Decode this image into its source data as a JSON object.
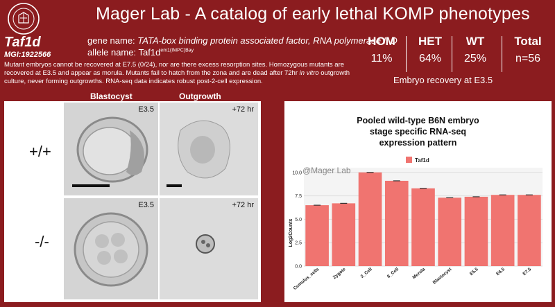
{
  "header": {
    "title": "Mager Lab - A catalog of early lethal KOMP phenotypes"
  },
  "gene": {
    "symbol": "Taf1d",
    "mgi": "MGI:1922566",
    "gene_name_label": "gene name:",
    "gene_name_value": "TATA-box binding protein associated factor, RNA polymerase I, D",
    "allele_name_label": "allele name:",
    "allele_base": "Taf1d",
    "allele_sup": "em1(IMPC)Bay"
  },
  "description": {
    "part1": "Mutant embryos cannot be recovered at E7.5 (0/24), nor are there excess resorption sites. Homozygous mutants are recovered at E3.5 and appear as morula. Mutants fail to hatch from the zona and are dead after 72hr ",
    "italic": "in vitro",
    "part2": " outgrowth culture, never forming outgrowths. RNA-seq data indicates robust post-2-cell expression."
  },
  "stats": {
    "hom_label": "HOM",
    "hom_value": "11%",
    "het_label": "HET",
    "het_value": "64%",
    "wt_label": "WT",
    "wt_value": "25%",
    "total_label": "Total",
    "total_value": "n=56",
    "recovery": "Embryo recovery at E3.5"
  },
  "images": {
    "col_blastocyst": "Blastocyst",
    "col_outgrowth": "Outgrowth",
    "row_wt": "+/+",
    "row_mut": "-/-",
    "tag_e35": "E3.5",
    "tag_72": "+72 hr"
  },
  "chart_data": {
    "type": "bar",
    "title_lines": [
      "Pooled wild-type B6N embryo",
      "stage specific RNA-seq",
      "expression pattern"
    ],
    "watermark": "@Mager Lab",
    "legend": "Taf1d",
    "ylabel": "Log2Counts",
    "ylim": [
      0,
      10.5
    ],
    "yticks": [
      "0.0",
      "2.5",
      "5.0",
      "7.5",
      "10.0"
    ],
    "categories": [
      "Cumulus_cells",
      "Zygote",
      "2_Cell",
      "8_Cell",
      "Morula",
      "Blastocyst",
      "E5.5",
      "E6.5",
      "E7.5"
    ],
    "values": [
      6.5,
      6.7,
      10.0,
      9.1,
      8.3,
      7.3,
      7.4,
      7.6,
      7.6
    ],
    "bar_color": "#f07470"
  }
}
